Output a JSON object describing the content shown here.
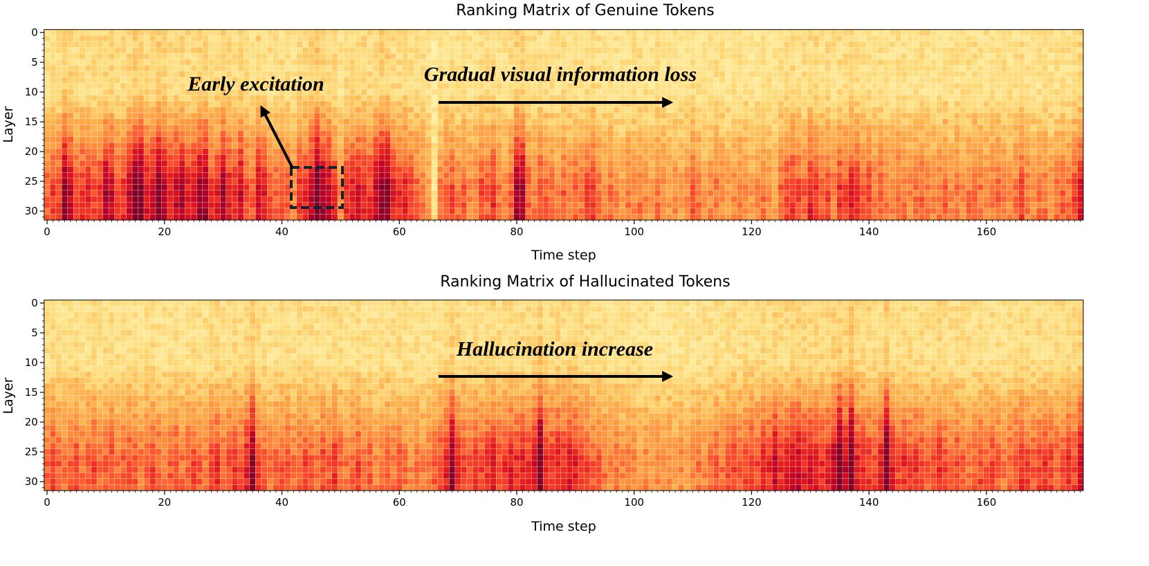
{
  "chart_data": [
    {
      "type": "heatmap",
      "title": "Ranking Matrix of Genuine Tokens",
      "xlabel": "Time step",
      "ylabel": "Layer",
      "colormap": "YlOrRd",
      "x_range": [
        0,
        176
      ],
      "y_range": [
        0,
        31
      ],
      "x_ticks": [
        "0",
        "20",
        "40",
        "60",
        "80",
        "100",
        "120",
        "140",
        "160"
      ],
      "y_ticks": [
        "0",
        "5",
        "10",
        "15",
        "20",
        "25",
        "30"
      ],
      "column_intensity": [
        0.45,
        0.55,
        0.5,
        0.85,
        0.7,
        0.5,
        0.55,
        0.6,
        0.5,
        0.55,
        0.75,
        0.7,
        0.5,
        0.55,
        0.7,
        0.9,
        0.9,
        0.65,
        0.7,
        0.9,
        0.75,
        0.6,
        0.7,
        0.75,
        0.6,
        0.65,
        0.8,
        0.8,
        0.55,
        0.6,
        0.8,
        0.6,
        0.55,
        0.7,
        0.5,
        0.45,
        0.7,
        0.6,
        0.5,
        0.45,
        0.5,
        0.45,
        0.35,
        0.55,
        0.6,
        0.7,
        1.0,
        0.75,
        0.7,
        0.55,
        0.35,
        0.55,
        0.6,
        0.65,
        0.6,
        0.55,
        0.7,
        0.85,
        0.85,
        0.6,
        0.55,
        0.6,
        0.5,
        0.45,
        0.4,
        0.3,
        0.05,
        0.4,
        0.45,
        0.5,
        0.4,
        0.45,
        0.35,
        0.4,
        0.5,
        0.45,
        0.55,
        0.4,
        0.35,
        0.45,
        0.8,
        0.8,
        0.45,
        0.4,
        0.5,
        0.45,
        0.4,
        0.35,
        0.45,
        0.4,
        0.45,
        0.4,
        0.5,
        0.55,
        0.4,
        0.35,
        0.4,
        0.35,
        0.3,
        0.4,
        0.35,
        0.4,
        0.35,
        0.3,
        0.4,
        0.35,
        0.3,
        0.35,
        0.3,
        0.35,
        0.45,
        0.4,
        0.3,
        0.35,
        0.4,
        0.35,
        0.3,
        0.35,
        0.4,
        0.35,
        0.3,
        0.35,
        0.4,
        0.35,
        0.3,
        0.45,
        0.5,
        0.55,
        0.5,
        0.45,
        0.6,
        0.55,
        0.45,
        0.5,
        0.4,
        0.55,
        0.5,
        0.6,
        0.55,
        0.45,
        0.5,
        0.4,
        0.45,
        0.4,
        0.35,
        0.45,
        0.4,
        0.35,
        0.4,
        0.45,
        0.4,
        0.35,
        0.4,
        0.45,
        0.35,
        0.4,
        0.35,
        0.4,
        0.45,
        0.4,
        0.35,
        0.4,
        0.45,
        0.4,
        0.35,
        0.4,
        0.5,
        0.4,
        0.35,
        0.4,
        0.4,
        0.35,
        0.4,
        0.45,
        0.4,
        0.5,
        0.65
      ],
      "annotations": [
        {
          "text": "Early excitation",
          "highlight": "dashed box around time steps 42–50, layers 23–29"
        },
        {
          "text": "Gradual visual information loss",
          "arrow": "right"
        }
      ]
    },
    {
      "type": "heatmap",
      "title": "Ranking Matrix of Hallucinated Tokens",
      "xlabel": "Time step",
      "ylabel": "Layer",
      "colormap": "YlOrRd",
      "x_range": [
        0,
        176
      ],
      "y_range": [
        0,
        31
      ],
      "x_ticks": [
        "0",
        "20",
        "40",
        "60",
        "80",
        "100",
        "120",
        "140",
        "160"
      ],
      "y_ticks": [
        "0",
        "5",
        "10",
        "15",
        "20",
        "25",
        "30"
      ],
      "column_intensity": [
        0.45,
        0.5,
        0.45,
        0.4,
        0.45,
        0.5,
        0.4,
        0.45,
        0.5,
        0.4,
        0.45,
        0.5,
        0.4,
        0.45,
        0.5,
        0.45,
        0.4,
        0.45,
        0.5,
        0.45,
        0.4,
        0.45,
        0.5,
        0.4,
        0.45,
        0.5,
        0.45,
        0.4,
        0.5,
        0.55,
        0.45,
        0.5,
        0.55,
        0.5,
        0.6,
        0.85,
        0.5,
        0.45,
        0.4,
        0.45,
        0.45,
        0.5,
        0.4,
        0.45,
        0.5,
        0.45,
        0.4,
        0.5,
        0.45,
        0.55,
        0.45,
        0.4,
        0.45,
        0.5,
        0.4,
        0.45,
        0.35,
        0.4,
        0.45,
        0.4,
        0.45,
        0.4,
        0.35,
        0.4,
        0.35,
        0.4,
        0.45,
        0.5,
        0.6,
        0.85,
        0.55,
        0.5,
        0.45,
        0.55,
        0.5,
        0.55,
        0.6,
        0.5,
        0.55,
        0.6,
        0.55,
        0.6,
        0.55,
        0.65,
        0.95,
        0.6,
        0.55,
        0.6,
        0.55,
        0.65,
        0.6,
        0.55,
        0.5,
        0.45,
        0.45,
        0.4,
        0.35,
        0.4,
        0.35,
        0.4,
        0.35,
        0.3,
        0.35,
        0.3,
        0.35,
        0.3,
        0.35,
        0.3,
        0.35,
        0.3,
        0.35,
        0.4,
        0.35,
        0.4,
        0.45,
        0.4,
        0.45,
        0.5,
        0.45,
        0.5,
        0.55,
        0.5,
        0.6,
        0.55,
        0.7,
        0.55,
        0.6,
        0.65,
        0.7,
        0.6,
        0.65,
        0.6,
        0.55,
        0.6,
        0.7,
        0.95,
        0.7,
        1.0,
        0.6,
        0.55,
        0.55,
        0.5,
        0.6,
        0.95,
        0.6,
        0.5,
        0.55,
        0.5,
        0.55,
        0.5,
        0.45,
        0.5,
        0.55,
        0.5,
        0.45,
        0.5,
        0.45,
        0.4,
        0.45,
        0.5,
        0.45,
        0.5,
        0.45,
        0.4,
        0.45,
        0.5,
        0.55,
        0.5,
        0.45,
        0.5,
        0.55,
        0.5,
        0.45,
        0.5,
        0.55,
        0.5,
        0.7
      ],
      "annotations": [
        {
          "text": "Hallucination increase",
          "arrow": "right"
        }
      ]
    }
  ]
}
